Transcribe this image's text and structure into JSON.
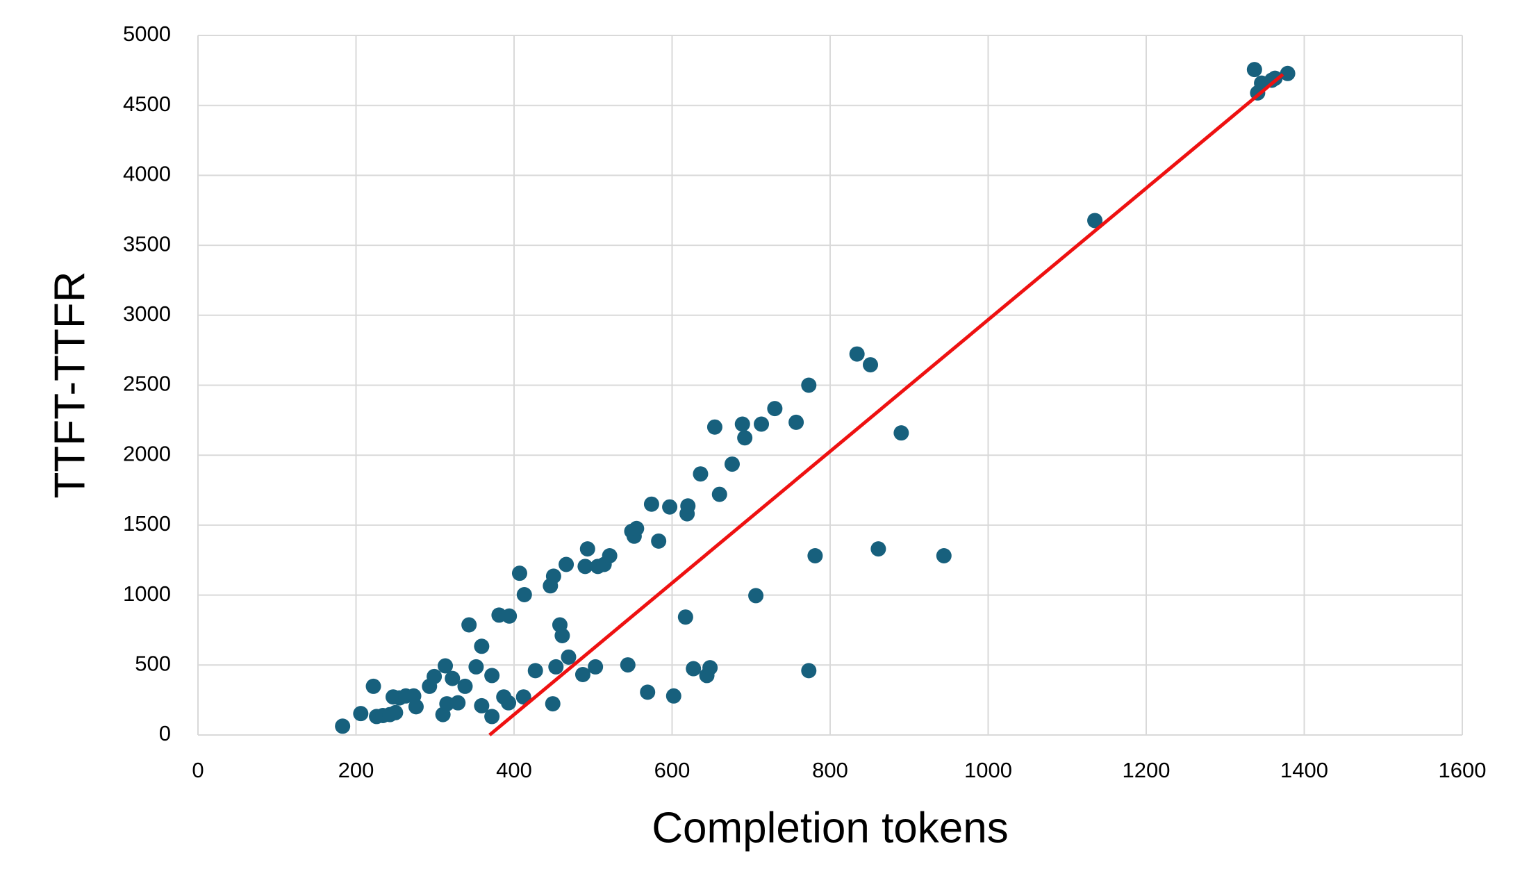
{
  "chart_data": {
    "type": "scatter",
    "xlabel": "Completion tokens",
    "ylabel": "TTFT-TTFR",
    "xlim": [
      0,
      1600
    ],
    "ylim": [
      0,
      5000
    ],
    "xticks": [
      0,
      200,
      400,
      600,
      800,
      1000,
      1200,
      1400,
      1600
    ],
    "yticks": [
      0,
      500,
      1000,
      1500,
      2000,
      2500,
      3000,
      3500,
      4000,
      4500,
      5000
    ],
    "grid": true,
    "series": [
      {
        "color": "#17607d",
        "x": [
          183,
          206,
          222,
          226,
          234,
          243,
          247,
          250,
          255,
          263,
          273,
          276,
          293,
          299,
          310,
          313,
          315,
          322,
          329,
          338,
          343,
          352,
          359,
          359,
          372,
          372,
          381,
          387,
          393,
          394,
          407,
          412,
          413,
          427,
          446,
          449,
          450,
          453,
          458,
          461,
          466,
          469,
          487,
          490,
          493,
          503,
          506,
          514,
          521,
          544,
          549,
          552,
          555,
          569,
          574,
          583,
          597,
          602,
          617,
          619,
          620,
          627,
          636,
          644,
          648,
          654,
          660,
          676,
          689,
          692,
          706,
          713,
          730,
          757,
          773,
          773,
          781,
          834,
          851,
          861,
          890,
          944,
          1135,
          1337,
          1341,
          1346,
          1359,
          1363,
          1379
        ],
        "y": [
          63,
          153,
          348,
          132,
          139,
          146,
          272,
          160,
          265,
          279,
          279,
          202,
          348,
          418,
          146,
          494,
          223,
          404,
          230,
          348,
          787,
          487,
          634,
          209,
          132,
          425,
          857,
          272,
          230,
          850,
          1156,
          272,
          1003,
          460,
          1066,
          223,
          1135,
          487,
          787,
          710,
          1219,
          557,
          432,
          1205,
          1330,
          487,
          1205,
          1219,
          1281,
          501,
          1456,
          1421,
          1476,
          306,
          1650,
          1386,
          1630,
          279,
          843,
          1581,
          1637,
          474,
          1866,
          425,
          481,
          2201,
          1720,
          1936,
          2222,
          2124,
          996,
          2222,
          2333,
          2235,
          2500,
          460,
          1281,
          2723,
          2646,
          1330,
          2159,
          1281,
          3677,
          4756,
          4589,
          4659,
          4680,
          4694,
          4728
        ]
      }
    ],
    "trendline": {
      "color": "#ee1111",
      "x": [
        369,
        1373
      ],
      "y": [
        0,
        4722
      ]
    }
  }
}
